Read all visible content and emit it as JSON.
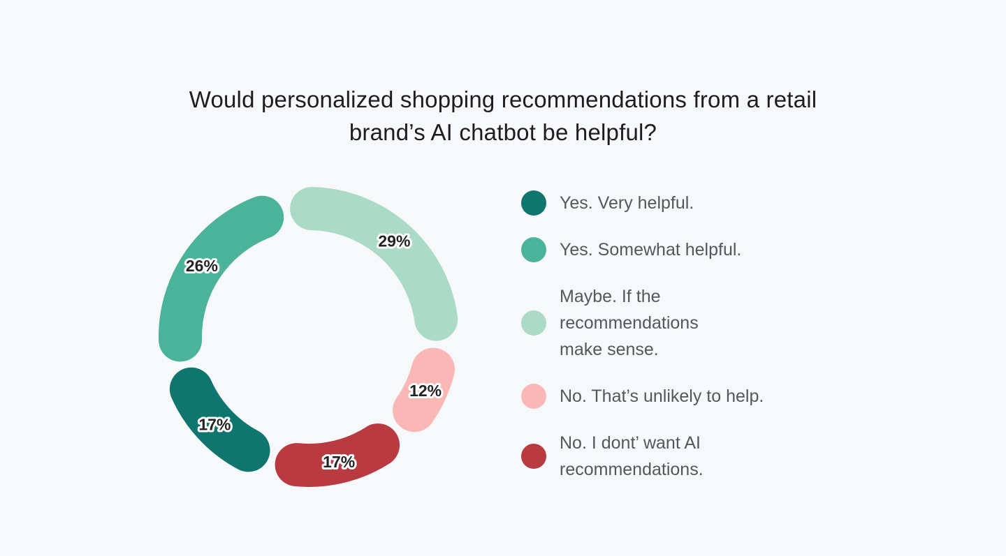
{
  "page": {
    "background_color": "#f7f8fa",
    "title_color": "#1d1d1f",
    "legend_text_color": "#53585c",
    "segment_label_color": "#212224",
    "segment_label_outline": "#ffffff"
  },
  "title": {
    "text": "Would personalized shopping recommendations from a retail brand’s AI chatbot be helpful?",
    "line1": "Would personalized shopping recommendations from a retail",
    "line2": "brand’s AI chatbot be helpful?"
  },
  "chart_data": {
    "type": "pie",
    "style": "donut-rounded-segments",
    "title": "Would personalized shopping recommendations from a retail brand’s AI chatbot be helpful?",
    "legend_position": "right",
    "start_angle_deg": -10,
    "categories": [
      "Yes. Very helpful.",
      "Yes. Somewhat helpful.",
      "Maybe. If the recommendations make sense.",
      "No. That’s unlikely to help.",
      "No. I dont’ want AI recommendations."
    ],
    "values": [
      17,
      26,
      29,
      12,
      17
    ],
    "segments": [
      {
        "key": "maybe",
        "label": "Maybe. If the recommendations make sense.",
        "value": 29,
        "display": "29%",
        "color": "#abdac7"
      },
      {
        "key": "no-unlikely",
        "label": "No. That’s unlikely to help.",
        "value": 12,
        "display": "12%",
        "color": "#f9b8b6"
      },
      {
        "key": "no-dont-want",
        "label": "No. I dont’ want AI recommendations.",
        "value": 17,
        "display": "17%",
        "color": "#b93a41"
      },
      {
        "key": "yes-very",
        "label": "Yes. Very helpful.",
        "value": 17,
        "display": "17%",
        "color": "#0e766f"
      },
      {
        "key": "yes-somewhat",
        "label": "Yes. Somewhat helpful.",
        "value": 26,
        "display": "26%",
        "color": "#4bb39a"
      }
    ]
  },
  "legend": {
    "items": [
      {
        "key": "yes-very",
        "color": "#0e766f",
        "lines": [
          "Yes. Very helpful."
        ]
      },
      {
        "key": "yes-somewhat",
        "color": "#4bb39a",
        "lines": [
          "Yes. Somewhat helpful."
        ]
      },
      {
        "key": "maybe",
        "color": "#abdac7",
        "lines": [
          "Maybe. If the",
          "recommendations",
          "make sense."
        ]
      },
      {
        "key": "no-unlikely",
        "color": "#f9b8b6",
        "lines": [
          "No. That’s unlikely to help."
        ]
      },
      {
        "key": "no-dont-want",
        "color": "#b93a41",
        "lines": [
          "No. I dont’ want AI",
          "recommendations."
        ]
      }
    ]
  }
}
